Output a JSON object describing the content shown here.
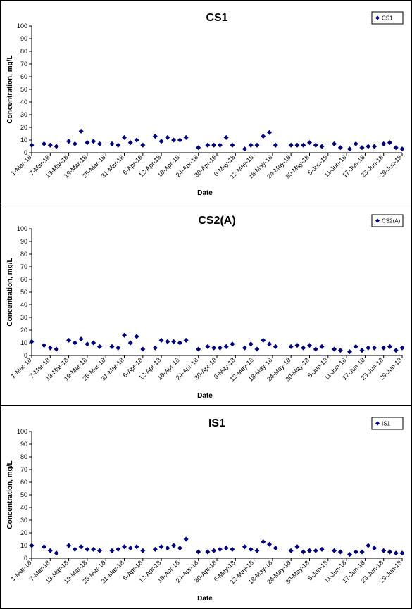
{
  "colors": {
    "marker": "#000080",
    "axis": "#000000",
    "background": "#ffffff"
  },
  "chart_data": [
    {
      "type": "scatter",
      "title": "CS1",
      "xlabel": "Date",
      "ylabel": "Concentration, mg/L",
      "ylim": [
        0,
        100
      ],
      "yticks": [
        0,
        10,
        20,
        30,
        40,
        50,
        60,
        70,
        80,
        90,
        100
      ],
      "xlim": [
        "2018-03-01",
        "2018-06-29"
      ],
      "xtick_labels": [
        "1-Mar-18",
        "7-Mar-18",
        "13-Mar-18",
        "19-Mar-18",
        "25-Mar-18",
        "31-Mar-18",
        "6-Apr-18",
        "12-Apr-18",
        "18-Apr-18",
        "24-Apr-18",
        "30-Apr-18",
        "6-May-18",
        "12-May-18",
        "18-May-18",
        "24-May-18",
        "30-May-18",
        "5-Jun-18",
        "11-Jun-18",
        "17-Jun-18",
        "23-Jun-18",
        "29-Jun-18"
      ],
      "legend": {
        "position": "top-right",
        "entries": [
          "CS1"
        ]
      },
      "grid": false,
      "series": [
        {
          "name": "CS1",
          "x": [
            "2018-03-01",
            "2018-03-05",
            "2018-03-07",
            "2018-03-09",
            "2018-03-13",
            "2018-03-15",
            "2018-03-17",
            "2018-03-19",
            "2018-03-21",
            "2018-03-23",
            "2018-03-27",
            "2018-03-29",
            "2018-03-31",
            "2018-04-02",
            "2018-04-04",
            "2018-04-06",
            "2018-04-10",
            "2018-04-12",
            "2018-04-14",
            "2018-04-16",
            "2018-04-18",
            "2018-04-20",
            "2018-04-24",
            "2018-04-27",
            "2018-04-29",
            "2018-05-01",
            "2018-05-03",
            "2018-05-05",
            "2018-05-09",
            "2018-05-11",
            "2018-05-13",
            "2018-05-15",
            "2018-05-17",
            "2018-05-19",
            "2018-05-24",
            "2018-05-26",
            "2018-05-28",
            "2018-05-30",
            "2018-06-01",
            "2018-06-03",
            "2018-06-07",
            "2018-06-09",
            "2018-06-12",
            "2018-06-14",
            "2018-06-16",
            "2018-06-18",
            "2018-06-20",
            "2018-06-23",
            "2018-06-25",
            "2018-06-27",
            "2018-06-29"
          ],
          "y": [
            6,
            7,
            6,
            5,
            9,
            7,
            17,
            8,
            9,
            7,
            7,
            6,
            12,
            8,
            10,
            6,
            13,
            9,
            12,
            10,
            10,
            12,
            4,
            6,
            6,
            6,
            12,
            6,
            3,
            6,
            6,
            13,
            16,
            6,
            6,
            6,
            6,
            8,
            6,
            5,
            7,
            4,
            3,
            7,
            4,
            5,
            5,
            7,
            8,
            4,
            3
          ]
        }
      ]
    },
    {
      "type": "scatter",
      "title": "CS2(A)",
      "xlabel": "Date",
      "ylabel": "Concentration, mg/L",
      "ylim": [
        0,
        100
      ],
      "yticks": [
        0,
        10,
        20,
        30,
        40,
        50,
        60,
        70,
        80,
        90,
        100
      ],
      "xlim": [
        "2018-03-01",
        "2018-06-29"
      ],
      "xtick_labels": [
        "1-Mar-18",
        "7-Mar-18",
        "13-Mar-18",
        "19-Mar-18",
        "25-Mar-18",
        "31-Mar-18",
        "6-Apr-18",
        "12-Apr-18",
        "18-Apr-18",
        "24-Apr-18",
        "30-Apr-18",
        "6-May-18",
        "12-May-18",
        "18-May-18",
        "24-May-18",
        "30-May-18",
        "5-Jun-18",
        "11-Jun-18",
        "17-Jun-18",
        "23-Jun-18",
        "29-Jun-18"
      ],
      "legend": {
        "position": "top-right",
        "entries": [
          "CS2(A)"
        ]
      },
      "grid": false,
      "series": [
        {
          "name": "CS2(A)",
          "x": [
            "2018-03-01",
            "2018-03-05",
            "2018-03-07",
            "2018-03-09",
            "2018-03-13",
            "2018-03-15",
            "2018-03-17",
            "2018-03-19",
            "2018-03-21",
            "2018-03-23",
            "2018-03-27",
            "2018-03-29",
            "2018-03-31",
            "2018-04-02",
            "2018-04-04",
            "2018-04-06",
            "2018-04-10",
            "2018-04-12",
            "2018-04-14",
            "2018-04-16",
            "2018-04-18",
            "2018-04-20",
            "2018-04-24",
            "2018-04-27",
            "2018-04-29",
            "2018-05-01",
            "2018-05-03",
            "2018-05-05",
            "2018-05-09",
            "2018-05-11",
            "2018-05-13",
            "2018-05-15",
            "2018-05-17",
            "2018-05-19",
            "2018-05-24",
            "2018-05-26",
            "2018-05-28",
            "2018-05-30",
            "2018-06-01",
            "2018-06-03",
            "2018-06-07",
            "2018-06-09",
            "2018-06-12",
            "2018-06-14",
            "2018-06-16",
            "2018-06-18",
            "2018-06-20",
            "2018-06-23",
            "2018-06-25",
            "2018-06-27",
            "2018-06-29"
          ],
          "y": [
            11,
            8,
            6,
            5,
            12,
            10,
            13,
            9,
            10,
            7,
            7,
            6,
            16,
            10,
            15,
            5,
            6,
            12,
            11,
            11,
            10,
            12,
            5,
            7,
            6,
            6,
            7,
            9,
            6,
            9,
            5,
            12,
            9,
            7,
            7,
            8,
            6,
            8,
            5,
            7,
            5,
            4,
            3,
            7,
            4,
            6,
            6,
            6,
            7,
            4,
            6
          ]
        }
      ]
    },
    {
      "type": "scatter",
      "title": "IS1",
      "xlabel": "Date",
      "ylabel": "Concentration, mg/L",
      "ylim": [
        0,
        100
      ],
      "yticks": [
        0,
        10,
        20,
        30,
        40,
        50,
        60,
        70,
        80,
        90,
        100
      ],
      "xlim": [
        "2018-03-01",
        "2018-06-29"
      ],
      "xtick_labels": [
        "1-Mar-18",
        "7-Mar-18",
        "13-Mar-18",
        "19-Mar-18",
        "25-Mar-18",
        "31-Mar-18",
        "6-Apr-18",
        "12-Apr-18",
        "18-Apr-18",
        "24-Apr-18",
        "30-Apr-18",
        "6-May-18",
        "12-May-18",
        "18-May-18",
        "24-May-18",
        "30-May-18",
        "5-Jun-18",
        "11-Jun-18",
        "17-Jun-18",
        "23-Jun-18",
        "29-Jun-18"
      ],
      "legend": {
        "position": "top-right",
        "entries": [
          "IS1"
        ]
      },
      "grid": false,
      "series": [
        {
          "name": "IS1",
          "x": [
            "2018-03-01",
            "2018-03-05",
            "2018-03-07",
            "2018-03-09",
            "2018-03-13",
            "2018-03-15",
            "2018-03-17",
            "2018-03-19",
            "2018-03-21",
            "2018-03-23",
            "2018-03-27",
            "2018-03-29",
            "2018-03-31",
            "2018-04-02",
            "2018-04-04",
            "2018-04-06",
            "2018-04-10",
            "2018-04-12",
            "2018-04-14",
            "2018-04-16",
            "2018-04-18",
            "2018-04-20",
            "2018-04-24",
            "2018-04-27",
            "2018-04-29",
            "2018-05-01",
            "2018-05-03",
            "2018-05-05",
            "2018-05-09",
            "2018-05-11",
            "2018-05-13",
            "2018-05-15",
            "2018-05-17",
            "2018-05-19",
            "2018-05-24",
            "2018-05-26",
            "2018-05-28",
            "2018-05-30",
            "2018-06-01",
            "2018-06-03",
            "2018-06-07",
            "2018-06-09",
            "2018-06-12",
            "2018-06-14",
            "2018-06-16",
            "2018-06-18",
            "2018-06-20",
            "2018-06-23",
            "2018-06-25",
            "2018-06-27",
            "2018-06-29"
          ],
          "y": [
            10,
            9,
            6,
            4,
            10,
            7,
            9,
            7,
            7,
            6,
            6,
            7,
            9,
            8,
            9,
            6,
            7,
            9,
            8,
            10,
            8,
            15,
            5,
            5,
            6,
            7,
            8,
            7,
            9,
            7,
            6,
            13,
            11,
            8,
            6,
            9,
            5,
            6,
            6,
            7,
            6,
            5,
            3,
            5,
            5,
            10,
            8,
            6,
            5,
            4,
            4
          ]
        }
      ]
    }
  ]
}
